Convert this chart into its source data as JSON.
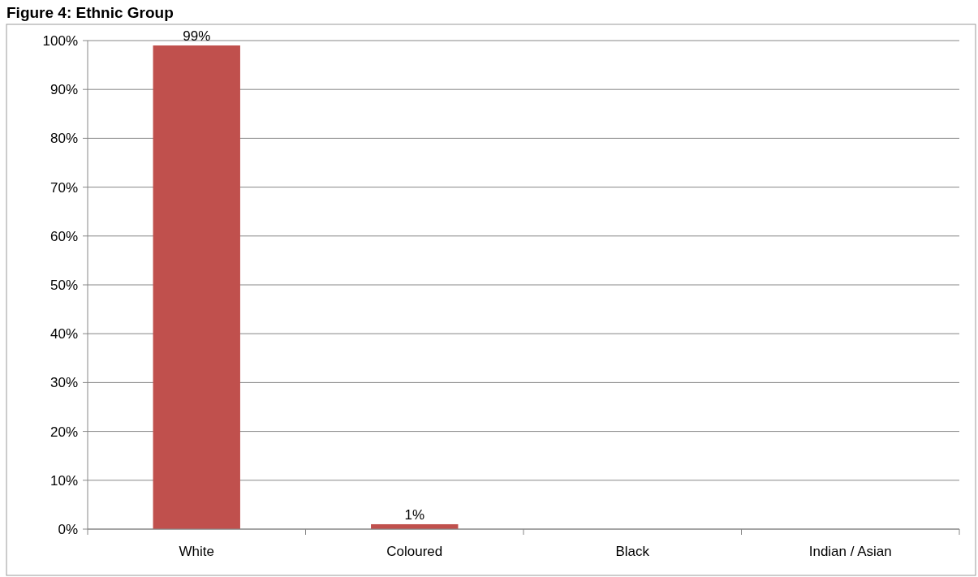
{
  "chart_data": {
    "type": "bar",
    "title": "Figure 4: Ethnic Group",
    "categories": [
      "White",
      "Coloured",
      "Black",
      "Indian / Asian"
    ],
    "values": [
      99,
      1,
      0,
      0
    ],
    "value_labels": [
      "99%",
      "1%",
      null,
      null
    ],
    "color": "#c0504d",
    "ylim": [
      0,
      100
    ],
    "yticks": [
      {
        "value": 0,
        "label": "0%"
      },
      {
        "value": 10,
        "label": "10%"
      },
      {
        "value": 20,
        "label": "20%"
      },
      {
        "value": 30,
        "label": "30%"
      },
      {
        "value": 40,
        "label": "40%"
      },
      {
        "value": 50,
        "label": "50%"
      },
      {
        "value": 60,
        "label": "60%"
      },
      {
        "value": 70,
        "label": "70%"
      },
      {
        "value": 80,
        "label": "80%"
      },
      {
        "value": 90,
        "label": "90%"
      },
      {
        "value": 100,
        "label": "100%"
      }
    ],
    "grid": "y"
  }
}
